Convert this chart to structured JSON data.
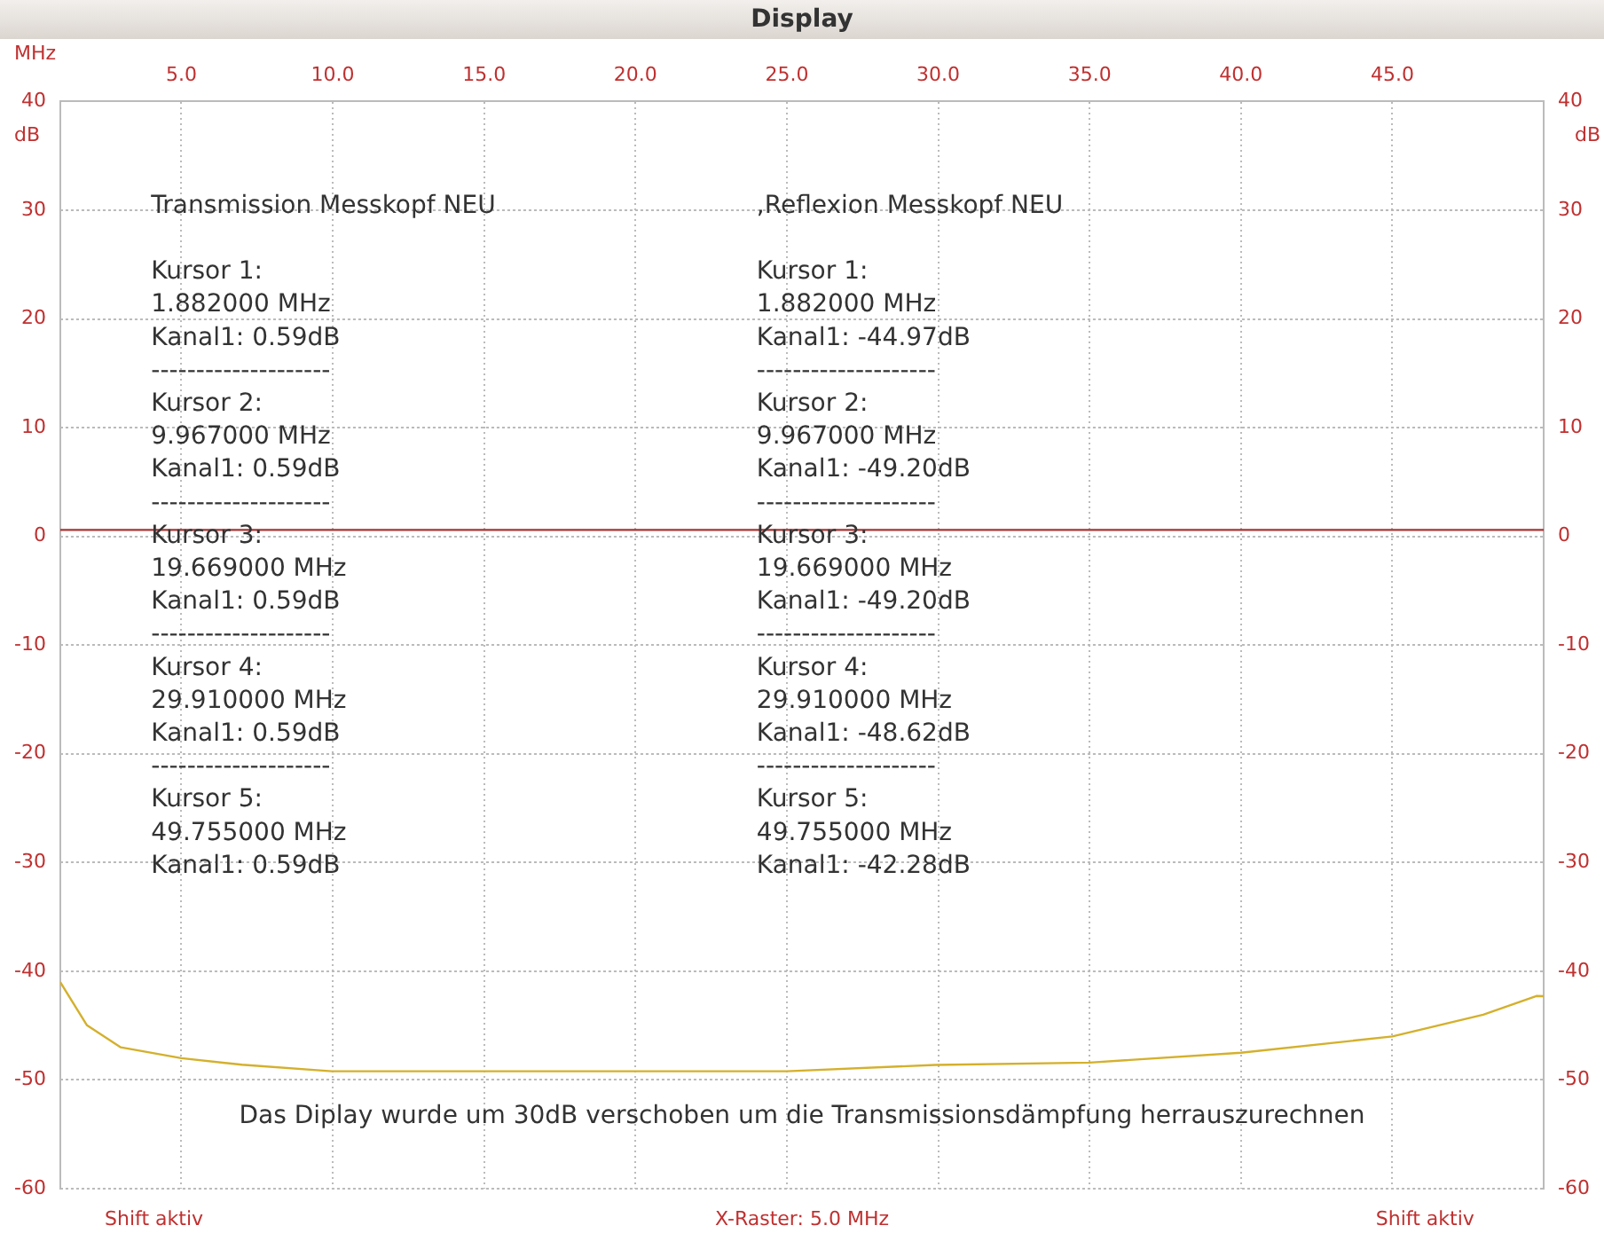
{
  "chart_data": {
    "type": "line",
    "title": "Display",
    "xlabel": "MHz",
    "ylabel": "dB",
    "y2label": "dB",
    "annotations": [
      "Transmission Messkopf NEU\n\nKursor 1:\n1.882000 MHz\nKanal1: 0.59dB\n--------------------\nKursor 2:\n9.967000 MHz\nKanal1: 0.59dB\n--------------------\nKursor 3:\n19.669000 MHz\nKanal1: 0.59dB\n--------------------\nKursor 4:\n29.910000 MHz\nKanal1: 0.59dB\n--------------------\nKursor 5:\n49.755000 MHz\nKanal1: 0.59dB",
      ",Reflexion Messkopf NEU\n\nKursor 1:\n1.882000 MHz\nKanal1: -44.97dB\n--------------------\nKursor 2:\n9.967000 MHz\nKanal1: -49.20dB\n--------------------\nKursor 3:\n19.669000 MHz\nKanal1: -49.20dB\n--------------------\nKursor 4:\n29.910000 MHz\nKanal1: -48.62dB\n--------------------\nKursor 5:\n49.755000 MHz\nKanal1: -42.28dB",
      "Das Diplay wurde um 30dB verschoben um die Transmissionsdämpfung herrauszurechnen",
      "Shift aktiv",
      "X-Raster: 5.0 MHz",
      "Shift aktiv"
    ],
    "series": [
      {
        "color": "#a83232",
        "x": [
          1,
          1.882,
          5,
          9.967,
          15,
          19.669,
          25,
          29.91,
          35,
          40,
          45,
          49.755,
          50
        ],
        "values": [
          0.59,
          0.59,
          0.59,
          0.59,
          0.59,
          0.59,
          0.59,
          0.59,
          0.59,
          0.59,
          0.59,
          0.59,
          0.59
        ]
      },
      {
        "color": "#d4b02c",
        "x": [
          1,
          1.882,
          3,
          5,
          7,
          9.967,
          15,
          19.669,
          25,
          29.91,
          35,
          40,
          45,
          48,
          49.755,
          50
        ],
        "values": [
          -41,
          -44.97,
          -47,
          -48,
          -48.6,
          -49.2,
          -49.2,
          -49.2,
          -49.2,
          -48.62,
          -48.4,
          -47.5,
          -46,
          -44,
          -42.28,
          -42.3
        ]
      }
    ],
    "xlim": [
      1,
      50
    ],
    "xticks": [
      {
        "value": 5,
        "label": "5.0"
      },
      {
        "value": 10,
        "label": "10.0"
      },
      {
        "value": 15,
        "label": "15.0"
      },
      {
        "value": 20,
        "label": "20.0"
      },
      {
        "value": 25,
        "label": "25.0"
      },
      {
        "value": 30,
        "label": "30.0"
      },
      {
        "value": 35,
        "label": "35.0"
      },
      {
        "value": 40,
        "label": "40.0"
      },
      {
        "value": 45,
        "label": "45.0"
      }
    ],
    "ylim": [
      -60,
      40
    ],
    "yticks": [
      -60,
      -50,
      -40,
      -30,
      -20,
      -10,
      0,
      10,
      20,
      30,
      40
    ],
    "y2lim": [
      -60,
      40
    ],
    "y2ticks": [
      -60,
      -50,
      -40,
      -30,
      -20,
      -10,
      0,
      10,
      20,
      30,
      40
    ],
    "grid": true,
    "legend": false,
    "marker": "none",
    "line_style": "solid"
  }
}
